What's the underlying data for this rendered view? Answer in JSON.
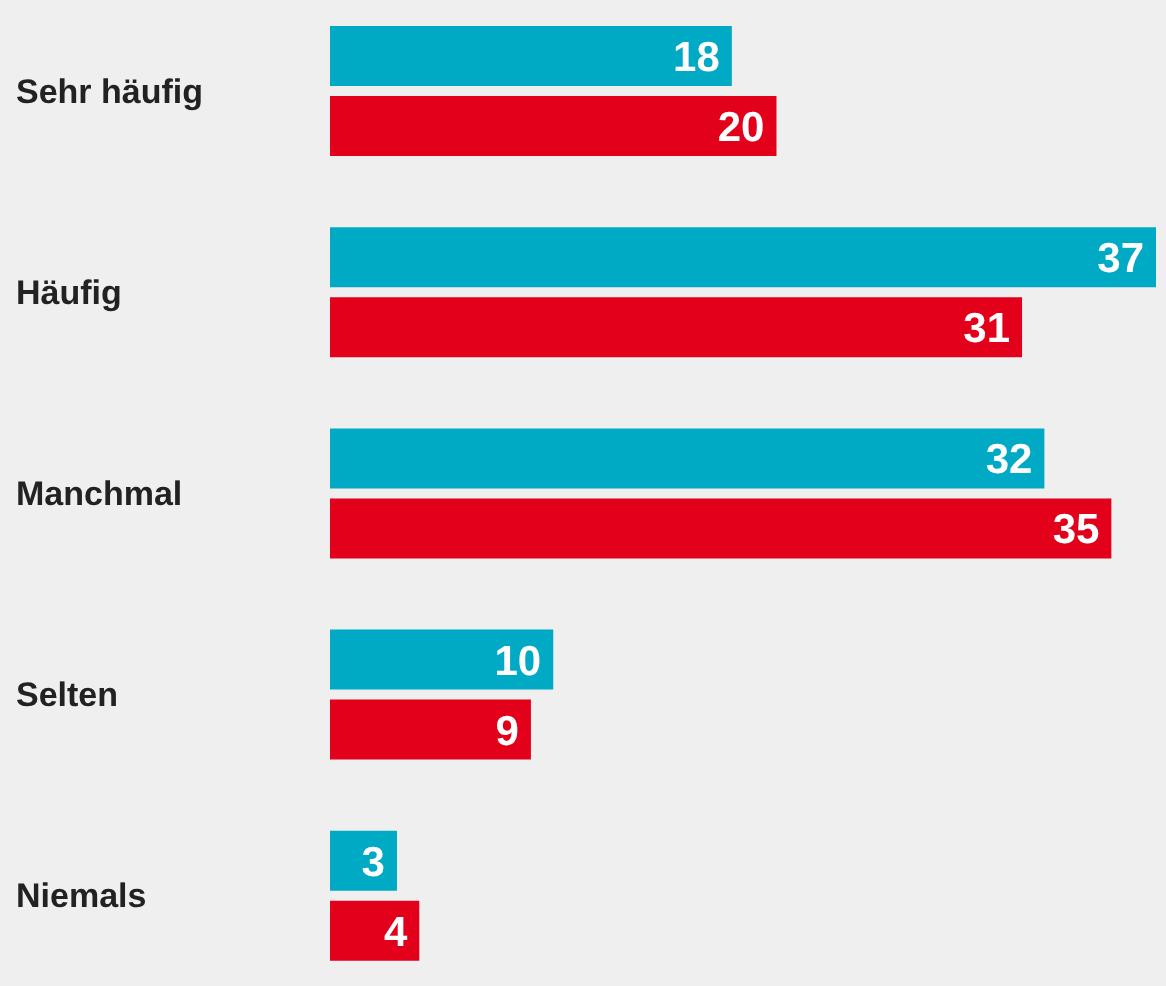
{
  "chart_data": {
    "type": "bar",
    "orientation": "horizontal",
    "categories": [
      "Sehr häufig",
      "Häufig",
      "Manchmal",
      "Selten",
      "Niemals"
    ],
    "series": [
      {
        "color": "#00a9c4",
        "values": [
          18,
          37,
          32,
          10,
          3
        ]
      },
      {
        "color": "#e2001a",
        "values": [
          20,
          31,
          35,
          9,
          4
        ]
      }
    ],
    "data_labels": true,
    "grid": false,
    "legend": false
  }
}
